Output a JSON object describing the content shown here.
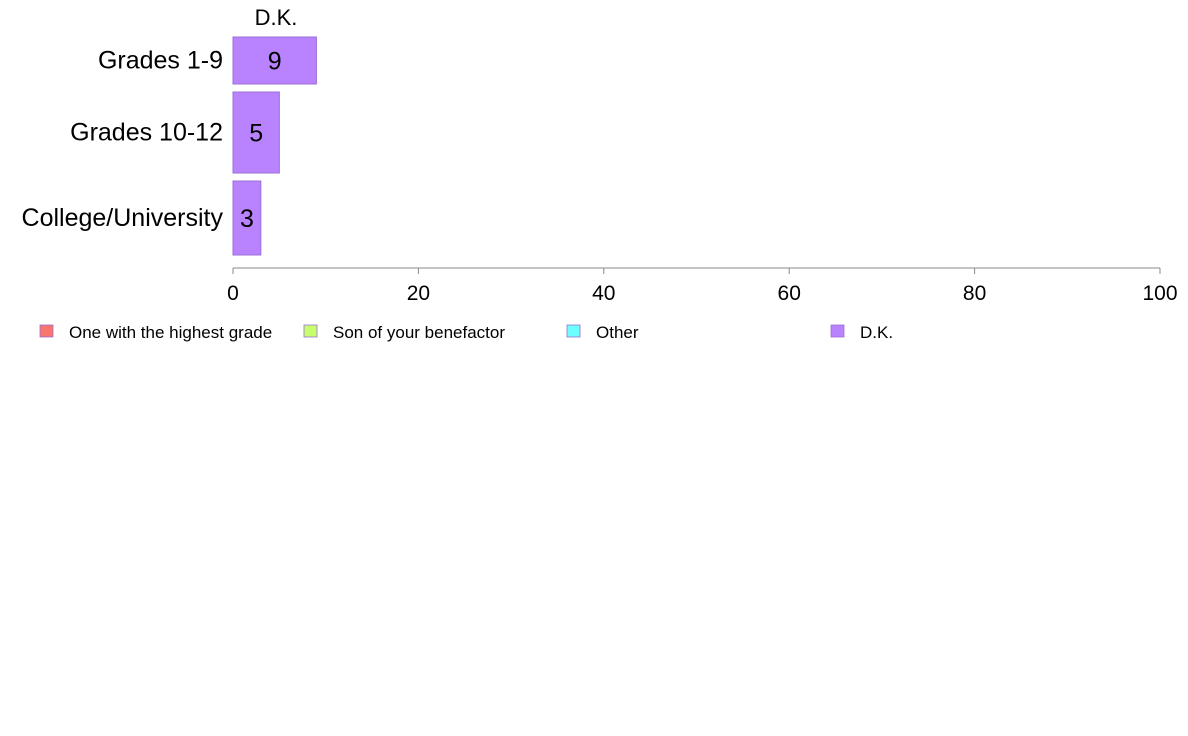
{
  "chart_data": {
    "type": "bar",
    "orientation": "horizontal",
    "stacked": true,
    "categories": [
      "Grades 1-9",
      "Grades 10-12",
      "College/University"
    ],
    "series": [
      {
        "name": "One with the highest grade",
        "values": [
          0,
          0,
          0
        ],
        "color": "#F8766D"
      },
      {
        "name": "Son of your benefactor",
        "values": [
          0,
          0,
          0
        ],
        "color": "#C6FF6B"
      },
      {
        "name": "Other",
        "values": [
          0,
          0,
          0
        ],
        "color": "#6BFFFF"
      },
      {
        "name": "D.K.",
        "values": [
          9,
          5,
          3
        ],
        "color": "#B983FF"
      }
    ],
    "data_labels": [
      "9",
      "5",
      "3"
    ],
    "column_header": "D.K.",
    "xlim": [
      0,
      100
    ],
    "x_ticks": [
      0,
      20,
      40,
      60,
      80,
      100
    ],
    "grid": false,
    "legend_position": "bottom",
    "colors": {
      "bar_border": "#9C6FD6",
      "axis": "#888888"
    }
  }
}
